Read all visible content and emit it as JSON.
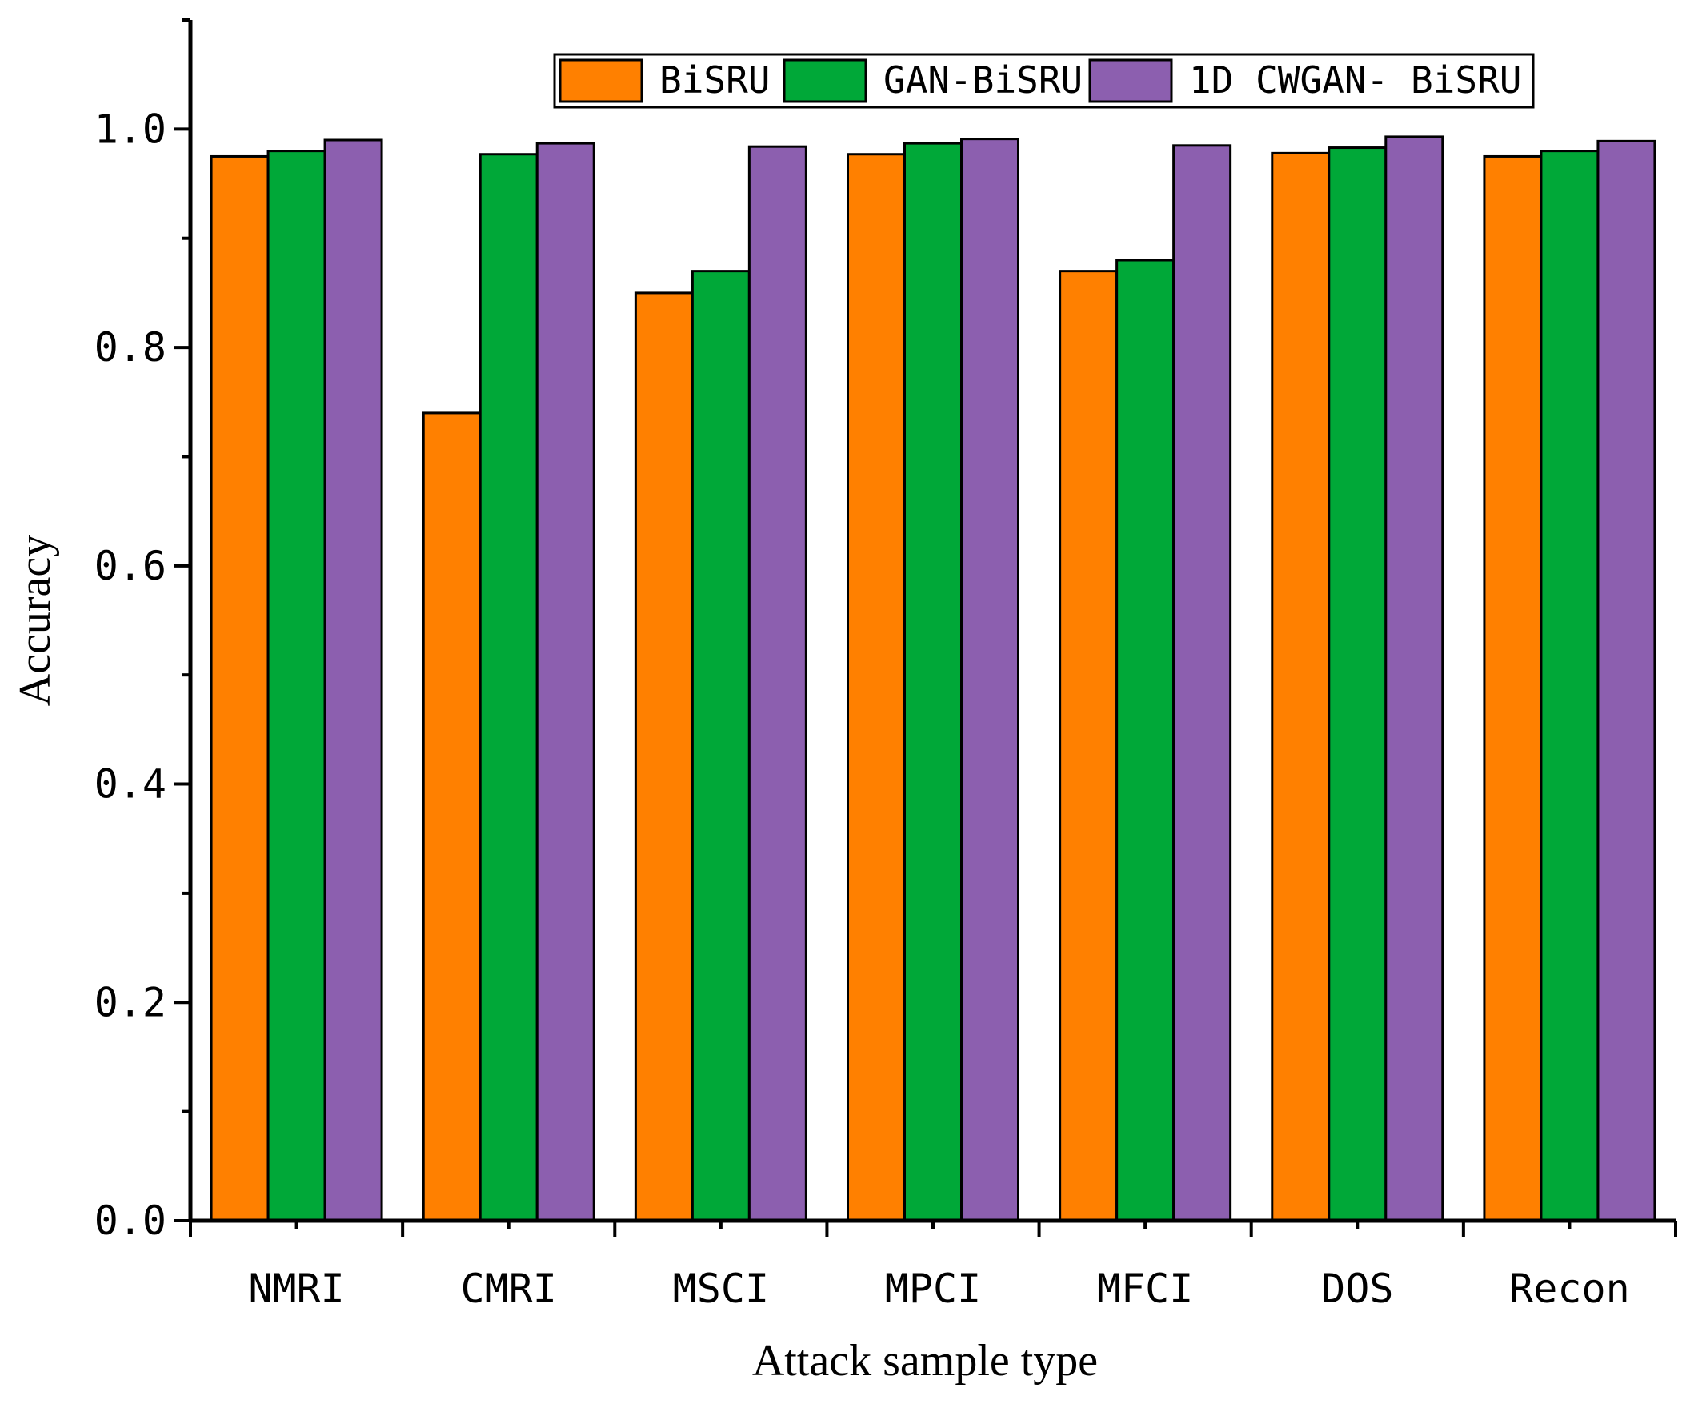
{
  "chart_data": {
    "type": "bar",
    "title": "",
    "xlabel": "Attack sample type",
    "ylabel": "Accuracy",
    "ylim": [
      0,
      1.1
    ],
    "yticks": [
      "0.0",
      "0.2",
      "0.4",
      "0.6",
      "0.8",
      "1.0"
    ],
    "yticks_values": [
      0,
      0.2,
      0.4,
      0.6,
      0.8,
      1.0
    ],
    "categories": [
      "NMRI",
      "CMRI",
      "MSCI",
      "MPCI",
      "MFCI",
      "DOS",
      "Recon"
    ],
    "series": [
      {
        "name": "BiSRU",
        "color": "#FF8000",
        "values": [
          0.975,
          0.74,
          0.85,
          0.977,
          0.87,
          0.978,
          0.975
        ]
      },
      {
        "name": "GAN-BiSRU",
        "color": "#00A838",
        "values": [
          0.98,
          0.977,
          0.87,
          0.987,
          0.88,
          0.983,
          0.98
        ]
      },
      {
        "name": "1D CWGAN- BiSRU",
        "color": "#8C5FAF",
        "values": [
          0.99,
          0.987,
          0.984,
          0.991,
          0.985,
          0.993,
          0.989
        ]
      }
    ],
    "legend_position": "top-right",
    "grid": false
  }
}
